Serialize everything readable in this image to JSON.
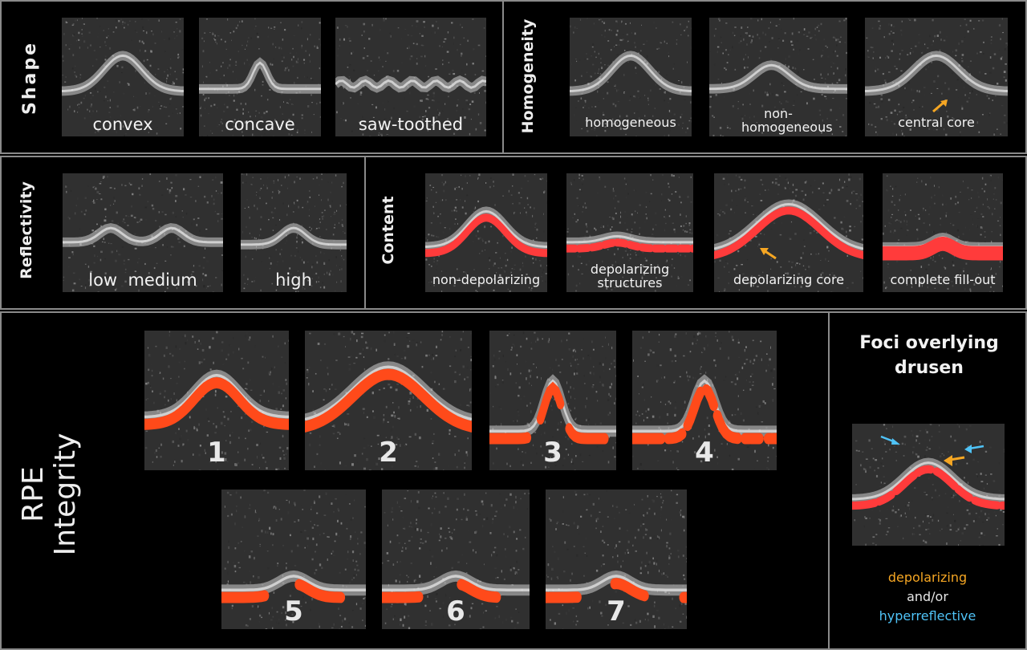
{
  "shape": {
    "title": "Shape",
    "tiles": [
      {
        "caption": "convex",
        "profile": "convex"
      },
      {
        "caption": "concave",
        "profile": "concave"
      },
      {
        "caption": "saw-toothed",
        "profile": "saw"
      }
    ]
  },
  "homogeneity": {
    "title": "Homogeneity",
    "tiles": [
      {
        "caption": "homogeneous",
        "profile": "convex"
      },
      {
        "caption": "non-homogeneous",
        "profile": "mound"
      },
      {
        "caption": "central core",
        "profile": "convex"
      }
    ]
  },
  "reflectivity": {
    "title": "Reflectivity",
    "tiles": [
      {
        "caption": "low  medium",
        "profile": "double"
      },
      {
        "caption": "high",
        "profile": "small"
      }
    ]
  },
  "content": {
    "title": "Content",
    "tiles": [
      {
        "caption": "non-depolarizing",
        "profile": "convex"
      },
      {
        "caption": "depolarizing structures",
        "profile": "flat"
      },
      {
        "caption": "depolarizing core",
        "profile": "wide"
      },
      {
        "caption": "complete fill-out",
        "profile": "flatbump"
      }
    ]
  },
  "rpe": {
    "title_line1": "RPE",
    "title_line2": "Integrity",
    "tiles": [
      {
        "number": "1"
      },
      {
        "number": "2"
      },
      {
        "number": "3"
      },
      {
        "number": "4"
      },
      {
        "number": "5"
      },
      {
        "number": "6"
      },
      {
        "number": "7"
      }
    ]
  },
  "foci": {
    "title": "Foci overlying drusen",
    "legend_depol": "depolarizing",
    "legend_and": "and/or",
    "legend_hyper": "hyperreflective"
  },
  "colors": {
    "depolarizing_overlay": "#ff3b3b",
    "rpe_overlay": "#ff4a1a",
    "arrow_orange": "#f5a623",
    "arrow_blue": "#4fc3f7",
    "panel_border": "#8a8a8a"
  }
}
